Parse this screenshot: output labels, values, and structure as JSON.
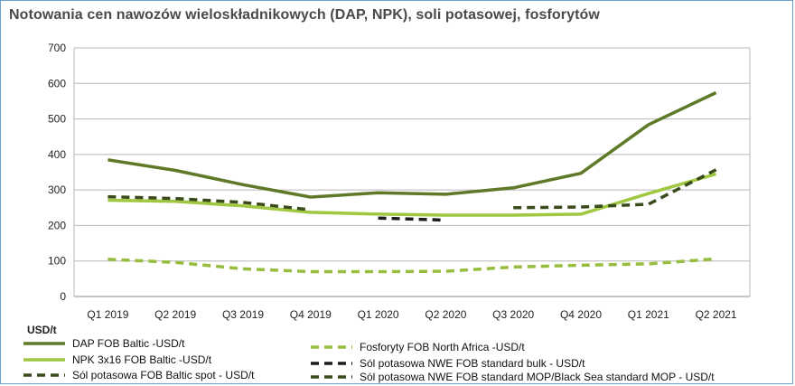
{
  "chart_data": {
    "type": "line",
    "title": "Notowania cen nawozów wieloskładnikowych (DAP, NPK), soli potasowej, fosforytów",
    "ylabel": "USD/t",
    "xlabel": "",
    "ylim": [
      0,
      700
    ],
    "yticks": [
      0,
      100,
      200,
      300,
      400,
      500,
      600,
      700
    ],
    "grid": true,
    "legend_position": "bottom",
    "categories": [
      "Q1 2019",
      "Q2 2019",
      "Q3 2019",
      "Q4 2019",
      "Q1 2020",
      "Q2 2020",
      "Q3 2020",
      "Q4 2020",
      "Q1 2021",
      "Q2 2021"
    ],
    "series": [
      {
        "name": "DAP FOB Baltic -USD/t",
        "color": "#5e7a28",
        "style": "solid",
        "values": [
          385,
          355,
          315,
          280,
          292,
          288,
          306,
          347,
          484,
          574
        ]
      },
      {
        "name": "NPK 3x16 FOB Baltic -USD/t",
        "color": "#9fc740",
        "style": "solid",
        "values": [
          271,
          268,
          255,
          237,
          232,
          229,
          229,
          232,
          290,
          345
        ]
      },
      {
        "name": "Sól potasowa FOB Baltic spot - USD/t",
        "color": "#3b4a1b",
        "style": "dashed",
        "values": [
          281,
          276,
          265,
          244,
          null,
          null,
          null,
          null,
          null,
          null
        ]
      },
      {
        "name": "Fosforyty FOB North Africa -USD/t",
        "color": "#96bd3d",
        "style": "dashed",
        "values": [
          105,
          96,
          78,
          70,
          70,
          71,
          83,
          88,
          92,
          106
        ]
      },
      {
        "name": "Sól potasowa  NWE FOB standard  bulk - USD/t",
        "color": "#1c1c1c",
        "style": "dashed",
        "values": [
          null,
          null,
          null,
          null,
          221,
          215,
          null,
          null,
          null,
          null
        ]
      },
      {
        "name": "Sól potasowa  NWE FOB standard  MOP/Black Sea standard MOP - USD/t",
        "color": "#394a1c",
        "style": "dashed",
        "values": [
          null,
          null,
          null,
          null,
          null,
          null,
          250,
          252,
          260,
          357
        ]
      }
    ]
  }
}
